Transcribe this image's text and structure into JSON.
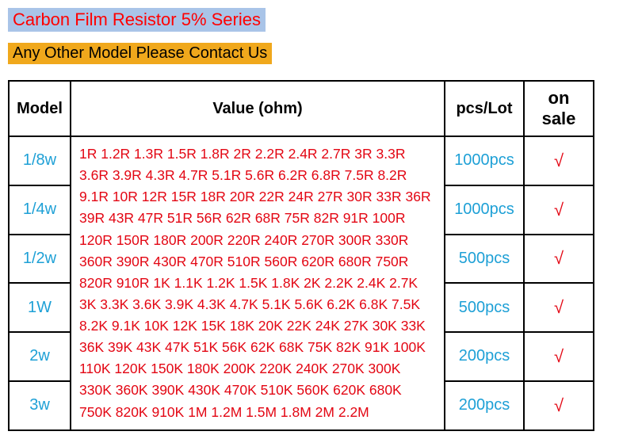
{
  "title": {
    "text": "Carbon Film Resistor 5% Series",
    "bg": "#a9c4e8",
    "color": "#ff0000"
  },
  "subtitle": {
    "text": "Any Other Model Please Contact Us",
    "bg": "#f0a81c",
    "color": "#000000"
  },
  "table": {
    "headers": {
      "model": "Model",
      "value": "Value  (ohm)",
      "pcs": "pcs/Lot",
      "sale": "on sale"
    },
    "value_text": "1R 1.2R 1.3R 1.5R 1.8R 2R 2.2R 2.4R 2.7R 3R 3.3R 3.6R 3.9R 4.3R 4.7R 5.1R 5.6R 6.2R 6.8R 7.5R 8.2R 9.1R 10R 12R 15R 18R 20R 22R 24R 27R 30R 33R 36R 39R 43R 47R 51R 56R 62R 68R 75R 82R 91R 100R 120R 150R 180R 200R 220R 240R 270R 300R 330R 360R 390R 430R 470R 510R 560R 620R 680R 750R 820R 910R 1K 1.1K 1.2K 1.5K 1.8K 2K 2.2K 2.4K 2.7K 3K 3.3K 3.6K 3.9K 4.3K 4.7K 5.1K 5.6K 6.2K 6.8K 7.5K 8.2K 9.1K 10K 12K 15K 18K 20K 22K 24K 27K 30K 33K 36K 39K 43K 47K 51K 56K 62K 68K 75K 82K 91K 100K 110K 120K 150K 180K 200K 220K 240K 270K 300K 330K 360K 390K 430K 470K 510K 560K 620K 680K 750K 820K 910K 1M 1.2M 1.5M 1.8M 2M 2.2M",
    "value_color": "#e30613",
    "rows": [
      {
        "model": "1/8w",
        "pcs": "1000pcs",
        "sale": "√"
      },
      {
        "model": "1/4w",
        "pcs": "1000pcs",
        "sale": "√"
      },
      {
        "model": "1/2w",
        "pcs": "500pcs",
        "sale": "√"
      },
      {
        "model": "1W",
        "pcs": "500pcs",
        "sale": "√"
      },
      {
        "model": "2w",
        "pcs": "200pcs",
        "sale": "√"
      },
      {
        "model": "3w",
        "pcs": "200pcs",
        "sale": "√"
      }
    ],
    "model_color": "#1ea0d6",
    "pcs_color": "#1ea0d6",
    "sale_color": "#e30613"
  }
}
